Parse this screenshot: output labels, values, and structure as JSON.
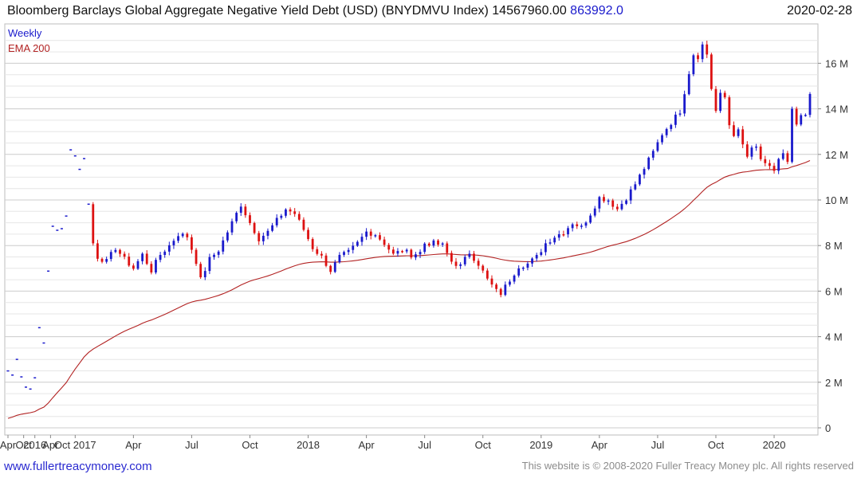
{
  "header": {
    "title": "Bloomberg Barclays Global Aggregate Negative Yield Debt (USD) (BNYDMVU Index)",
    "last_value": "14567960.00",
    "change": "863992.0",
    "date": "2020-02-28"
  },
  "legend": {
    "series_label": "Weekly",
    "ema_label": "EMA 200"
  },
  "footer": {
    "site": "www.fullertreacymoney.com",
    "copyright": "This website is © 2008-2020 Fuller Treacy Money plc. All rights reserved"
  },
  "colors": {
    "up": "#1a1acc",
    "down": "#dd1111",
    "ema": "#b22222",
    "grid": "#cccccc",
    "grid_minor": "#e6e6e6"
  },
  "chart_data": {
    "type": "candlestick",
    "title": "Bloomberg Barclays Global Aggregate Negative Yield Debt (USD) (BNYDMVU Index)",
    "frequency": "Weekly",
    "unit": "USD millions",
    "ylim": [
      0,
      17.3
    ],
    "y_ticks": [
      {
        "value": 0,
        "label": "0"
      },
      {
        "value": 2,
        "label": "2 M"
      },
      {
        "value": 4,
        "label": "4 M"
      },
      {
        "value": 6,
        "label": "6 M"
      },
      {
        "value": 8,
        "label": "8 M"
      },
      {
        "value": 10,
        "label": "10 M"
      },
      {
        "value": 12,
        "label": "12 M"
      },
      {
        "value": 14,
        "label": "14 M"
      },
      {
        "value": 16,
        "label": "16 M"
      }
    ],
    "x_ticks": [
      {
        "week": 0,
        "label": "Apr"
      },
      {
        "week": 7,
        "label": "Oct"
      },
      {
        "week": 12,
        "label": "2016"
      },
      {
        "week": 19,
        "label": "Apr"
      },
      {
        "week": 30,
        "label": "Oct 2017"
      },
      {
        "week": 56,
        "label": "Apr"
      },
      {
        "week": 82,
        "label": "Jul"
      },
      {
        "week": 108,
        "label": "Oct"
      },
      {
        "week": 134,
        "label": "2018"
      },
      {
        "week": 160,
        "label": "Apr"
      },
      {
        "week": 186,
        "label": "Jul"
      },
      {
        "week": 212,
        "label": "Oct"
      },
      {
        "week": 238,
        "label": "2019"
      },
      {
        "week": 264,
        "label": "Apr"
      },
      {
        "week": 290,
        "label": "Jul"
      },
      {
        "week": 316,
        "label": "Oct"
      },
      {
        "week": 342,
        "label": "2020"
      }
    ],
    "week_span": [
      0,
      358
    ],
    "anchors": [
      [
        0,
        2.5
      ],
      [
        2,
        2.3
      ],
      [
        4,
        3.1
      ],
      [
        6,
        2.3
      ],
      [
        8,
        1.8
      ],
      [
        10,
        1.7
      ],
      [
        12,
        2.3
      ],
      [
        14,
        4.3
      ],
      [
        16,
        3.7
      ],
      [
        18,
        6.9
      ],
      [
        20,
        8.9
      ],
      [
        22,
        8.6
      ],
      [
        24,
        8.7
      ],
      [
        26,
        9.4
      ],
      [
        28,
        12.2
      ],
      [
        30,
        12.0
      ],
      [
        32,
        11.3
      ],
      [
        34,
        11.9
      ],
      [
        36,
        9.8
      ],
      [
        38,
        8.1
      ],
      [
        40,
        7.5
      ],
      [
        44,
        7.3
      ],
      [
        48,
        7.9
      ],
      [
        52,
        7.4
      ],
      [
        56,
        7.0
      ],
      [
        60,
        7.6
      ],
      [
        64,
        6.9
      ],
      [
        68,
        7.6
      ],
      [
        72,
        8.0
      ],
      [
        76,
        8.5
      ],
      [
        80,
        8.4
      ],
      [
        84,
        7.3
      ],
      [
        86,
        6.5
      ],
      [
        90,
        7.4
      ],
      [
        94,
        7.8
      ],
      [
        98,
        8.6
      ],
      [
        104,
        9.8
      ],
      [
        108,
        9.0
      ],
      [
        112,
        8.3
      ],
      [
        116,
        8.6
      ],
      [
        120,
        9.1
      ],
      [
        124,
        9.6
      ],
      [
        128,
        9.4
      ],
      [
        132,
        8.7
      ],
      [
        136,
        7.9
      ],
      [
        140,
        7.5
      ],
      [
        144,
        6.9
      ],
      [
        148,
        7.5
      ],
      [
        152,
        7.7
      ],
      [
        156,
        8.1
      ],
      [
        160,
        8.6
      ],
      [
        164,
        8.5
      ],
      [
        168,
        8.1
      ],
      [
        172,
        7.6
      ],
      [
        176,
        7.8
      ],
      [
        180,
        7.6
      ],
      [
        184,
        7.7
      ],
      [
        186,
        8.1
      ],
      [
        190,
        8.1
      ],
      [
        194,
        8.0
      ],
      [
        198,
        7.3
      ],
      [
        202,
        7.1
      ],
      [
        206,
        7.7
      ],
      [
        210,
        7.2
      ],
      [
        214,
        6.5
      ],
      [
        218,
        6.0
      ],
      [
        220,
        5.9
      ],
      [
        224,
        6.5
      ],
      [
        228,
        7.1
      ],
      [
        232,
        7.2
      ],
      [
        236,
        7.5
      ],
      [
        240,
        8.1
      ],
      [
        244,
        8.4
      ],
      [
        248,
        8.6
      ],
      [
        252,
        9.0
      ],
      [
        256,
        8.8
      ],
      [
        260,
        9.4
      ],
      [
        264,
        10.1
      ],
      [
        268,
        10.0
      ],
      [
        272,
        9.6
      ],
      [
        276,
        10.1
      ],
      [
        280,
        10.7
      ],
      [
        284,
        11.4
      ],
      [
        288,
        12.1
      ],
      [
        292,
        12.9
      ],
      [
        296,
        13.4
      ],
      [
        300,
        13.9
      ],
      [
        304,
        15.6
      ],
      [
        306,
        16.4
      ],
      [
        308,
        16.3
      ],
      [
        310,
        16.8
      ],
      [
        312,
        16.4
      ],
      [
        314,
        14.9
      ],
      [
        316,
        13.9
      ],
      [
        318,
        14.6
      ],
      [
        320,
        14.5
      ],
      [
        322,
        13.3
      ],
      [
        324,
        12.9
      ],
      [
        326,
        13.0
      ],
      [
        328,
        12.4
      ],
      [
        330,
        11.9
      ],
      [
        332,
        12.2
      ],
      [
        334,
        12.3
      ],
      [
        336,
        11.8
      ],
      [
        338,
        11.5
      ],
      [
        340,
        11.4
      ],
      [
        342,
        11.3
      ],
      [
        344,
        11.8
      ],
      [
        346,
        12.0
      ],
      [
        348,
        11.6
      ],
      [
        350,
        13.9
      ],
      [
        352,
        13.3
      ],
      [
        354,
        13.6
      ],
      [
        356,
        13.7
      ],
      [
        358,
        14.57
      ]
    ]
  }
}
